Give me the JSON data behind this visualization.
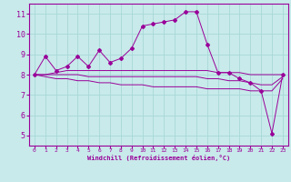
{
  "xlabel": "Windchill (Refroidissement éolien,°C)",
  "x_ticks": [
    0,
    1,
    2,
    3,
    4,
    5,
    6,
    7,
    8,
    9,
    10,
    11,
    12,
    13,
    14,
    15,
    16,
    17,
    18,
    19,
    20,
    21,
    22,
    23
  ],
  "ylim": [
    4.5,
    11.5
  ],
  "xlim": [
    -0.5,
    23.5
  ],
  "yticks": [
    5,
    6,
    7,
    8,
    9,
    10,
    11
  ],
  "line_color": "#990099",
  "bg_color": "#c8eaea",
  "grid_color": "#a8d8d8",
  "series": {
    "main": [
      8.0,
      8.9,
      8.2,
      8.4,
      8.9,
      8.4,
      9.2,
      8.6,
      8.8,
      9.3,
      10.4,
      10.5,
      10.6,
      10.7,
      11.1,
      11.1,
      9.5,
      8.1,
      8.1,
      7.8,
      7.6,
      7.2,
      5.1,
      8.0
    ],
    "upper": [
      8.0,
      8.0,
      8.1,
      8.2,
      8.2,
      8.2,
      8.2,
      8.2,
      8.2,
      8.2,
      8.2,
      8.2,
      8.2,
      8.2,
      8.2,
      8.2,
      8.2,
      8.1,
      8.1,
      8.1,
      8.0,
      8.0,
      8.0,
      8.0
    ],
    "middle": [
      8.0,
      8.0,
      8.0,
      8.0,
      8.0,
      7.9,
      7.9,
      7.9,
      7.9,
      7.9,
      7.9,
      7.9,
      7.9,
      7.9,
      7.9,
      7.9,
      7.8,
      7.8,
      7.7,
      7.7,
      7.6,
      7.5,
      7.5,
      7.9
    ],
    "lower": [
      8.0,
      7.9,
      7.8,
      7.8,
      7.7,
      7.7,
      7.6,
      7.6,
      7.5,
      7.5,
      7.5,
      7.4,
      7.4,
      7.4,
      7.4,
      7.4,
      7.3,
      7.3,
      7.3,
      7.3,
      7.2,
      7.2,
      7.2,
      7.8
    ]
  }
}
